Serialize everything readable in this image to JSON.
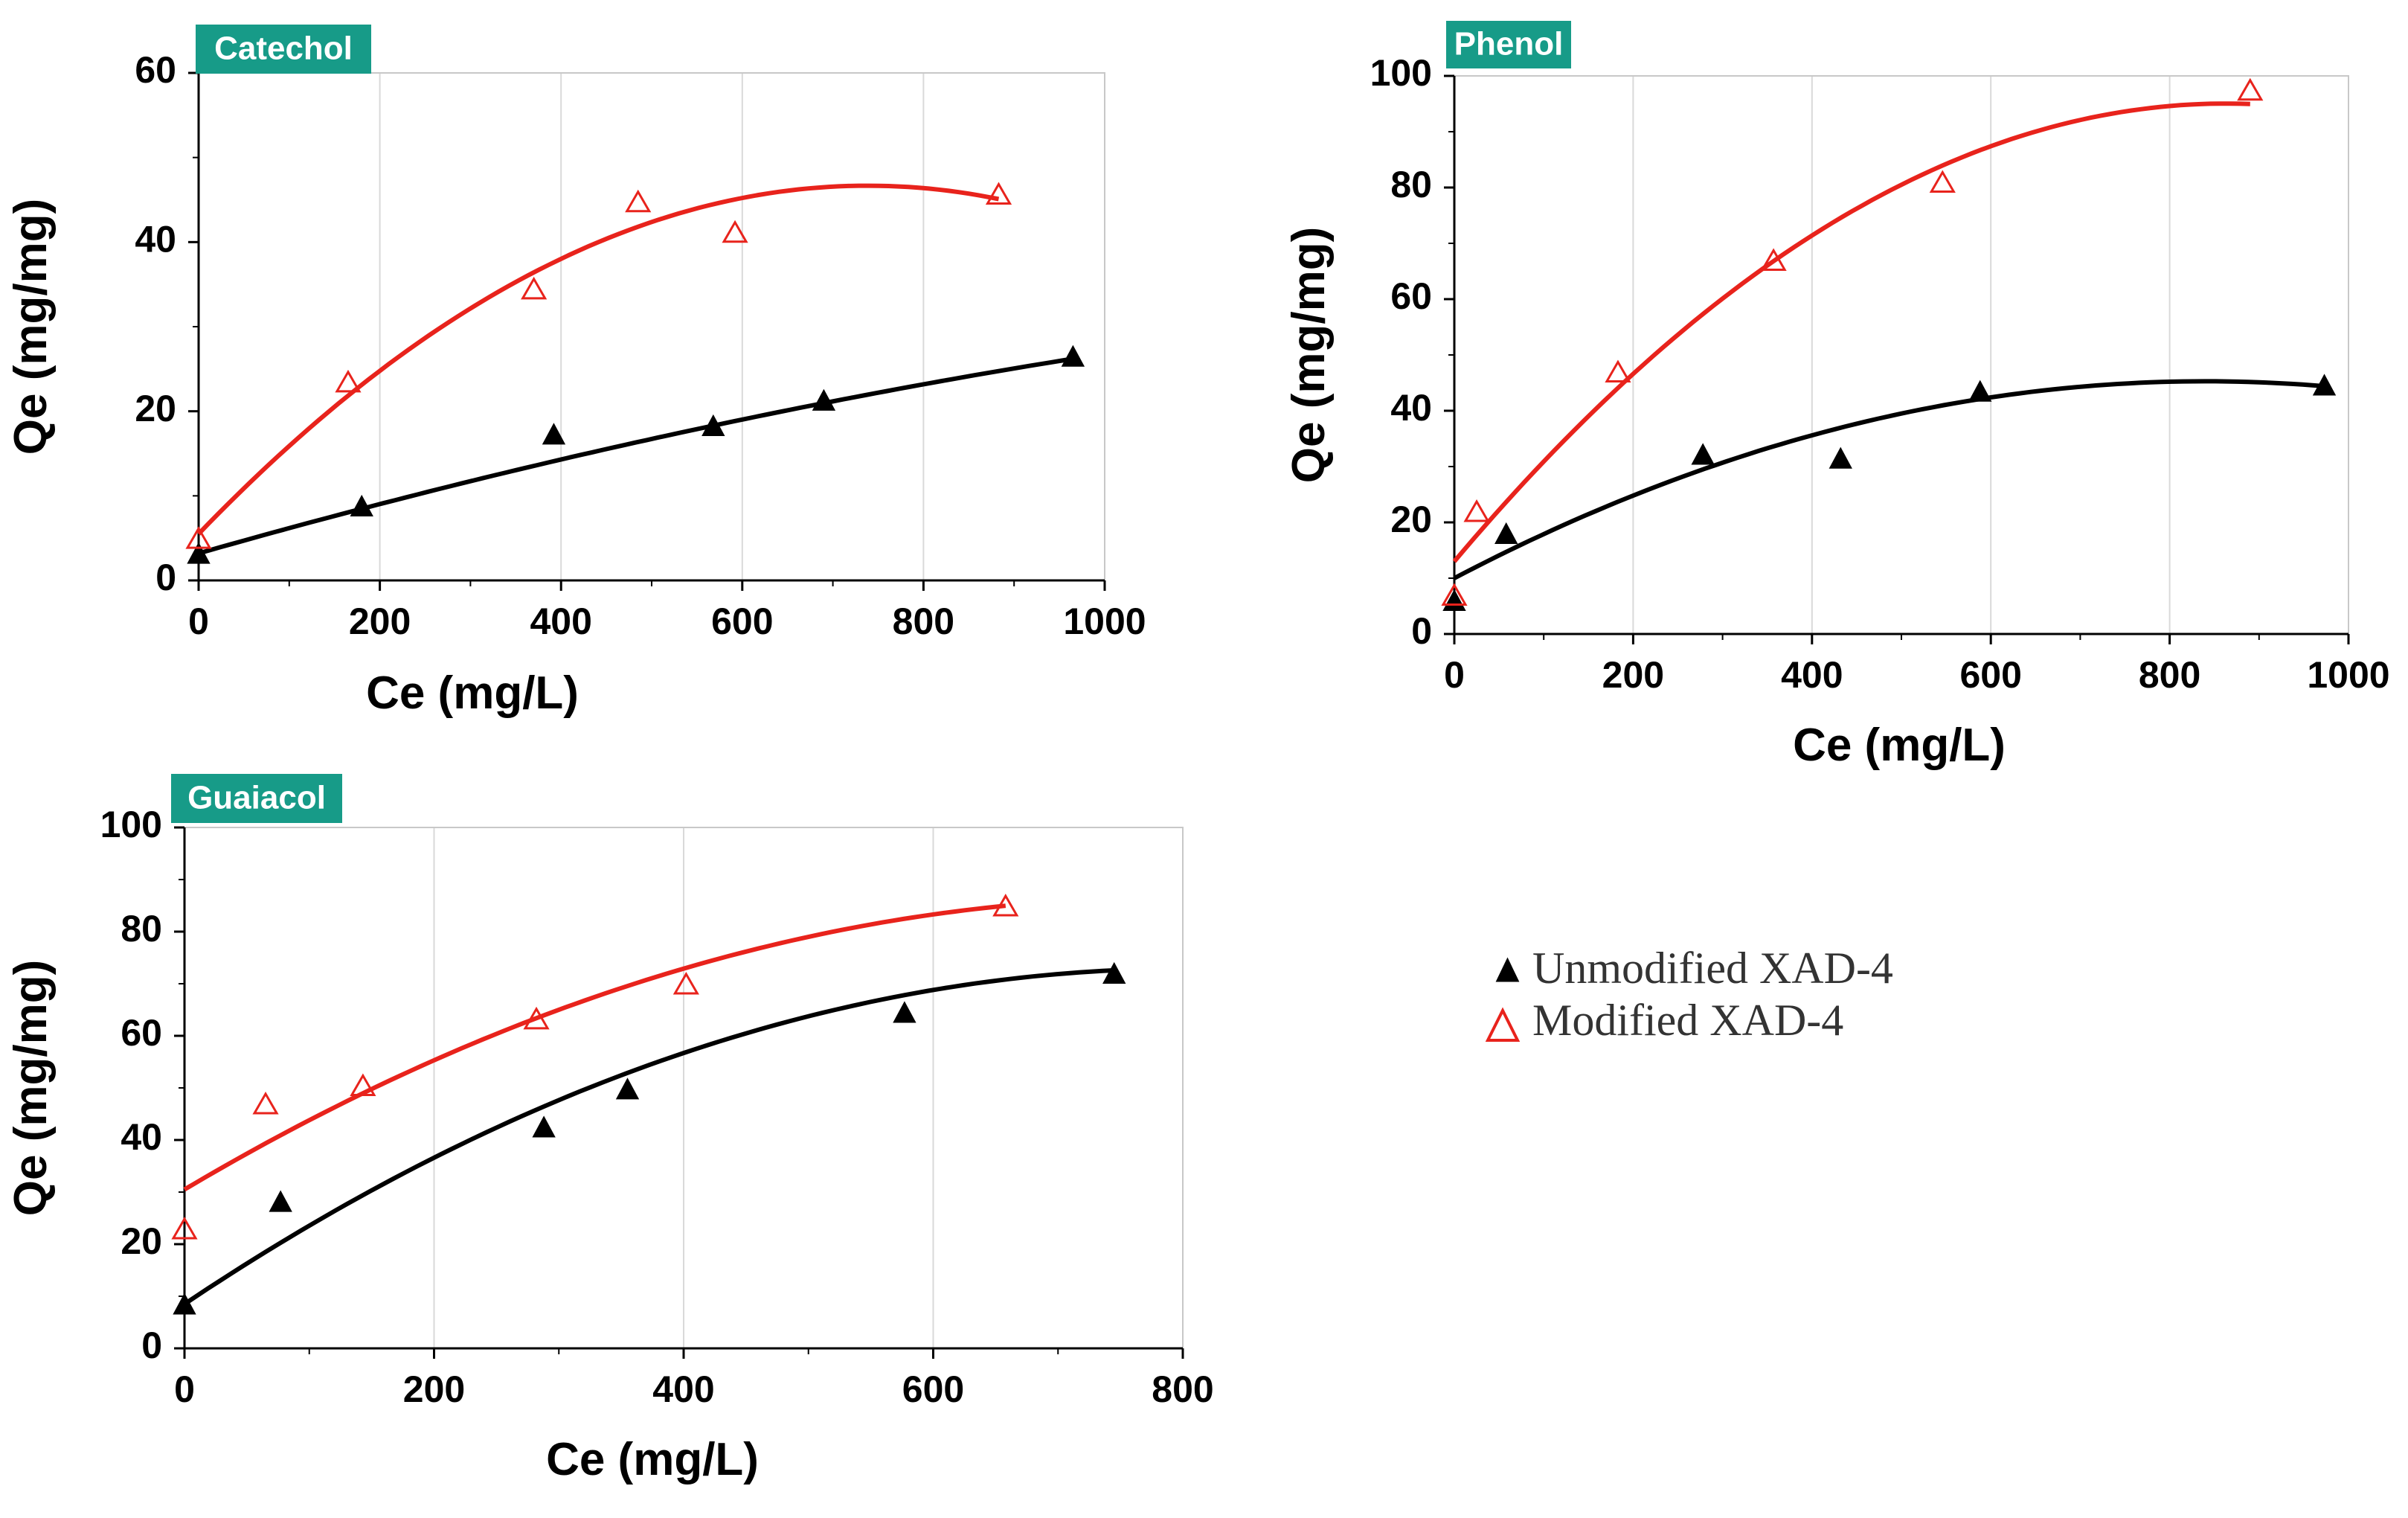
{
  "legend": {
    "entries": [
      {
        "name": "Unmodified XAD-4",
        "color": "#000000",
        "marker": "filled-triangle"
      },
      {
        "name": "Modified XAD-4",
        "color": "#e8231c",
        "marker": "open-triangle"
      }
    ]
  },
  "colors": {
    "panel_label_bg": "#179b88",
    "unmodified": "#000000",
    "modified": "#e8231c",
    "grid": "#d9d9d9"
  },
  "chart_data": [
    {
      "type": "scatter",
      "title": "Catechol",
      "xlabel": "Ce (mg/L)",
      "ylabel": "Qe (mg/mg)",
      "xlim": [
        0,
        1000
      ],
      "ylim": [
        0,
        60
      ],
      "xticks": [
        0,
        200,
        400,
        600,
        800,
        1000
      ],
      "yticks": [
        0,
        20,
        40,
        60
      ],
      "grid": "vertical",
      "series": [
        {
          "name": "Unmodified XAD-4",
          "x": [
            0,
            180,
            392,
            568,
            690,
            965
          ],
          "y": [
            3.2,
            8.8,
            17.3,
            18.3,
            21.3,
            26.5
          ],
          "fit_polynomial": [
            3.2,
            0.0305,
            -6.9e-06
          ],
          "fit_range": [
            0,
            965
          ]
        },
        {
          "name": "Modified XAD-4",
          "x": [
            0,
            165,
            370,
            485,
            592,
            883
          ],
          "y": [
            5.0,
            23.5,
            34.5,
            44.8,
            41.2,
            45.7
          ],
          "fit_polynomial": [
            5.5,
            0.1115,
            -7.55e-05
          ],
          "fit_range": [
            0,
            883
          ]
        }
      ]
    },
    {
      "type": "scatter",
      "title": "Phenol",
      "xlabel": "Ce (mg/L)",
      "ylabel": "Qe (mg/mg)",
      "xlim": [
        0,
        1000
      ],
      "ylim": [
        0,
        100
      ],
      "xticks": [
        0,
        200,
        400,
        600,
        800,
        1000
      ],
      "yticks": [
        0,
        20,
        40,
        60,
        80,
        100
      ],
      "grid": "vertical",
      "series": [
        {
          "name": "Unmodified XAD-4",
          "x": [
            0,
            58,
            278,
            432,
            588,
            973
          ],
          "y": [
            6.0,
            18.0,
            32.2,
            31.5,
            43.5,
            44.6
          ],
          "fit_polynomial": [
            10.0,
            0.084,
            -5e-05
          ],
          "fit_range": [
            0,
            973
          ]
        },
        {
          "name": "Modified XAD-4",
          "x": [
            0,
            25,
            183,
            357,
            546,
            890
          ],
          "y": [
            7.0,
            22.0,
            47.0,
            67.0,
            81.0,
            97.5
          ],
          "fit_polynomial": [
            13.0,
            0.19,
            -0.00011
          ],
          "fit_range": [
            0,
            890
          ]
        }
      ]
    },
    {
      "type": "scatter",
      "title": "Guaiacol",
      "xlabel": "Ce (mg/L)",
      "ylabel": "Qe (mg/mg)",
      "xlim": [
        0,
        800
      ],
      "ylim": [
        0,
        100
      ],
      "xticks": [
        0,
        200,
        400,
        600,
        800
      ],
      "yticks": [
        0,
        20,
        40,
        60,
        80,
        100
      ],
      "grid": "vertical",
      "series": [
        {
          "name": "Unmodified XAD-4",
          "x": [
            0,
            77,
            288,
            355,
            577,
            745
          ],
          "y": [
            8.5,
            28.2,
            42.5,
            49.8,
            64.5,
            72.0
          ],
          "fit_polynomial": [
            8.5,
            0.1605,
            -0.0001
          ],
          "fit_range": [
            0,
            745
          ]
        },
        {
          "name": "Modified XAD-4",
          "x": [
            0,
            65,
            143,
            282,
            402,
            658
          ],
          "y": [
            23.0,
            47.0,
            50.5,
            63.3,
            70.0,
            85.0
          ],
          "fit_polynomial": [
            30.5,
            0.142,
            -9e-05
          ],
          "fit_range": [
            0,
            658
          ]
        }
      ]
    }
  ]
}
